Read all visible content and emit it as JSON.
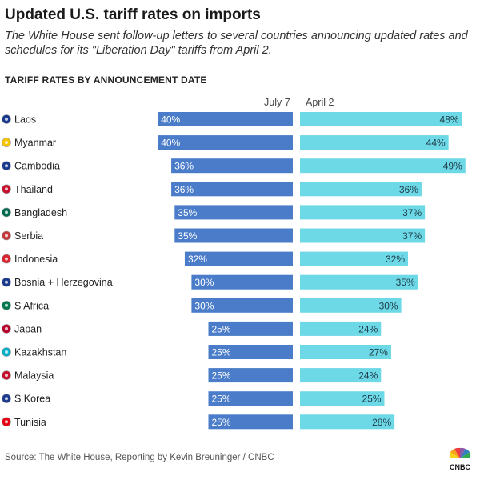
{
  "header": {
    "title": "Updated U.S. tariff rates on imports",
    "subtitle": "The White House sent follow-up letters to several countries announcing updated rates and schedules for its \"Liberation Day\" tariffs from April 2."
  },
  "chart_data": {
    "type": "bar",
    "title": "TARIFF RATES BY ANNOUNCEMENT DATE",
    "categories": [
      "Laos",
      "Myanmar",
      "Cambodia",
      "Thailand",
      "Bangladesh",
      "Serbia",
      "Indonesia",
      "Bosnia + Herzegovina",
      "S Africa",
      "Japan",
      "Kazakhstan",
      "Malaysia",
      "S Korea",
      "Tunisia"
    ],
    "series": [
      {
        "name": "July 7",
        "values": [
          40,
          40,
          36,
          36,
          35,
          35,
          32,
          30,
          30,
          25,
          25,
          25,
          25,
          25
        ],
        "color": "#4a7cc9",
        "direction": "left"
      },
      {
        "name": "April 2",
        "values": [
          48,
          44,
          49,
          36,
          37,
          37,
          32,
          35,
          30,
          24,
          27,
          24,
          25,
          28
        ],
        "color": "#6dd9e6",
        "direction": "right"
      }
    ],
    "value_suffix": "%",
    "flags": [
      "laos-flag-icon",
      "myanmar-flag-icon",
      "cambodia-flag-icon",
      "thailand-flag-icon",
      "bangladesh-flag-icon",
      "serbia-flag-icon",
      "indonesia-flag-icon",
      "bosnia-flag-icon",
      "south-africa-flag-icon",
      "japan-flag-icon",
      "kazakhstan-flag-icon",
      "malaysia-flag-icon",
      "south-korea-flag-icon",
      "tunisia-flag-icon"
    ],
    "flag_colors": [
      "#1a3a8f",
      "#f5c400",
      "#1a3a8f",
      "#c8102e",
      "#006a4e",
      "#c6363c",
      "#d9232e",
      "#1a3a8f",
      "#007a4d",
      "#bc002d",
      "#00afca",
      "#c8102e",
      "#1a3a8f",
      "#e70013"
    ]
  },
  "source": "Source: The White House, Reporting by Kevin Breuninger / CNBC",
  "logo_text": "CNBC"
}
